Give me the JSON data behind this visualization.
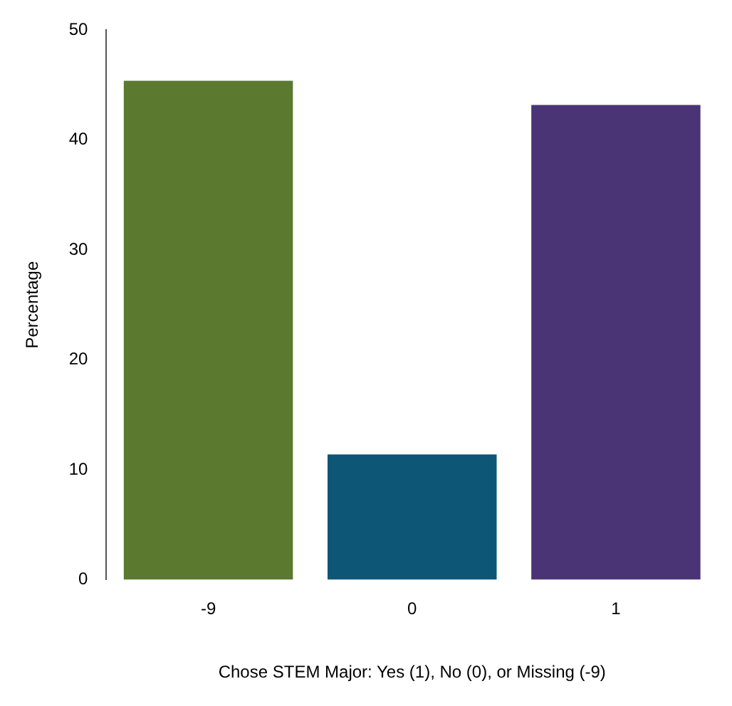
{
  "chart_data": {
    "type": "bar",
    "xlabel": "Chose STEM Major: Yes (1), No (0), or Missing (-9)",
    "ylabel": "Percentage",
    "categories": [
      "-9",
      "0",
      "1"
    ],
    "values": [
      45.4,
      11.4,
      43.2
    ],
    "colors": [
      "#5b792f",
      "#0e5676",
      "#4a3476"
    ],
    "ylim": [
      0,
      50
    ],
    "yticks": [
      0,
      10,
      20,
      30,
      40,
      50
    ],
    "grid": false,
    "legend": false
  }
}
